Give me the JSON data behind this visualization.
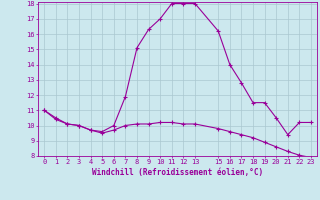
{
  "x_values": [
    0,
    1,
    2,
    3,
    4,
    5,
    6,
    7,
    8,
    9,
    10,
    11,
    12,
    13,
    15,
    16,
    17,
    18,
    19,
    20,
    21,
    22,
    23
  ],
  "upper_curve": [
    11.0,
    10.5,
    10.1,
    10.0,
    9.7,
    9.6,
    10.0,
    11.9,
    15.1,
    16.3,
    17.0,
    18.0,
    18.0,
    18.0,
    16.2,
    14.0,
    12.8,
    11.5,
    11.5,
    10.5,
    9.4,
    10.2,
    10.2
  ],
  "lower_curve": [
    11.0,
    10.4,
    10.1,
    10.0,
    9.7,
    9.5,
    9.7,
    10.0,
    10.1,
    10.1,
    10.2,
    10.2,
    10.1,
    10.1,
    9.8,
    9.6,
    9.4,
    9.2,
    8.9,
    8.6,
    8.3,
    8.05,
    7.9
  ],
  "color": "#990099",
  "bg_color": "#cce8ee",
  "grid_color": "#b0d0d8",
  "xlabel": "Windchill (Refroidissement éolien,°C)",
  "ylim": [
    8,
    18
  ],
  "xlim": [
    -0.5,
    23.5
  ],
  "yticks": [
    8,
    9,
    10,
    11,
    12,
    13,
    14,
    15,
    16,
    17,
    18
  ],
  "xticks": [
    0,
    1,
    2,
    3,
    4,
    5,
    6,
    7,
    8,
    9,
    10,
    11,
    12,
    13,
    15,
    16,
    17,
    18,
    19,
    20,
    21,
    22,
    23
  ],
  "marker": "+",
  "linewidth": 0.8,
  "markersize": 3,
  "tick_fontsize": 5,
  "xlabel_fontsize": 5.5
}
